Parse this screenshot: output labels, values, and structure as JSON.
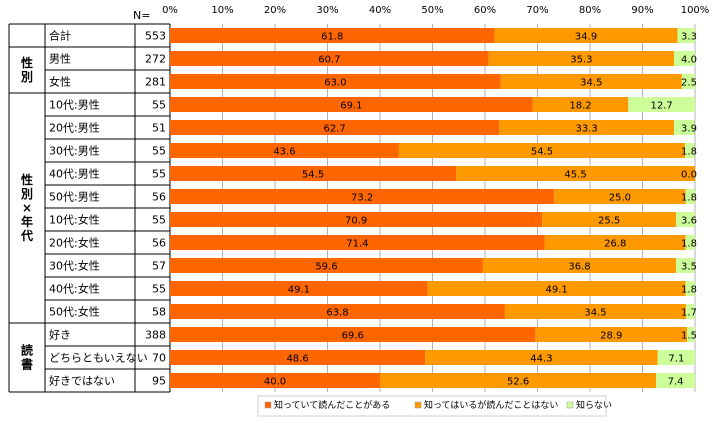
{
  "chart_data": {
    "type": "bar",
    "stacked": true,
    "orientation": "horizontal",
    "n_label": "N=",
    "xlim": [
      0,
      100
    ],
    "x_ticks": [
      "0%",
      "10%",
      "20%",
      "30%",
      "40%",
      "50%",
      "60%",
      "70%",
      "80%",
      "90%",
      "100%"
    ],
    "grid": true,
    "legend_position": "bottom",
    "groups": [
      {
        "label": "",
        "rows": [
          0,
          0
        ]
      },
      {
        "label": "性別",
        "rows": [
          1,
          2
        ]
      },
      {
        "label": "性別×年代",
        "rows": [
          3,
          12
        ]
      },
      {
        "label": "読書",
        "rows": [
          13,
          15
        ]
      }
    ],
    "categories": [
      "合計",
      "男性",
      "女性",
      "10代:男性",
      "20代:男性",
      "30代:男性",
      "40代:男性",
      "50代:男性",
      "10代:女性",
      "20代:女性",
      "30代:女性",
      "40代:女性",
      "50代:女性",
      "好き",
      "どちらともいえない",
      "好きではない"
    ],
    "n": [
      "553",
      "272",
      "281",
      "55",
      "51",
      "55",
      "55",
      "56",
      "55",
      "56",
      "57",
      "55",
      "58",
      "388",
      "70",
      "95"
    ],
    "series": [
      {
        "name": "知っていて読んだことがある",
        "color": "#ff6600",
        "values": [
          61.8,
          60.7,
          63.0,
          69.1,
          62.7,
          43.6,
          54.5,
          73.2,
          70.9,
          71.4,
          59.6,
          49.1,
          63.8,
          69.6,
          48.6,
          40.0
        ],
        "labels": [
          "61.8",
          "60.7",
          "63.0",
          "69.1",
          "62.7",
          "43.6",
          "54.5",
          "73.2",
          "70.9",
          "71.4",
          "59.6",
          "49.1",
          "63.8",
          "69.6",
          "48.6",
          "40.0"
        ]
      },
      {
        "name": "知ってはいるが読んだことはない",
        "color": "#ff9900",
        "values": [
          34.9,
          35.3,
          34.5,
          18.2,
          33.3,
          54.5,
          45.5,
          25.0,
          25.5,
          26.8,
          36.8,
          49.1,
          34.5,
          28.9,
          44.3,
          52.6
        ],
        "labels": [
          "34.9",
          "35.3",
          "34.5",
          "18.2",
          "33.3",
          "54.5",
          "45.5",
          "25.0",
          "25.5",
          "26.8",
          "36.8",
          "49.1",
          "34.5",
          "28.9",
          "44.3",
          "52.6"
        ]
      },
      {
        "name": "知らない",
        "color": "#ccff99",
        "values": [
          3.3,
          4.0,
          2.5,
          12.7,
          3.9,
          1.8,
          0.0,
          1.8,
          3.6,
          1.8,
          3.5,
          1.8,
          1.7,
          1.5,
          7.1,
          7.4
        ],
        "labels": [
          "3.3",
          "4.0",
          "2.5",
          "12.7",
          "3.9",
          "1.8",
          "0.0",
          "1.8",
          "3.6",
          "1.8",
          "3.5",
          "1.8",
          "1.7",
          "1.5",
          "7.1",
          "7.4"
        ]
      }
    ]
  }
}
